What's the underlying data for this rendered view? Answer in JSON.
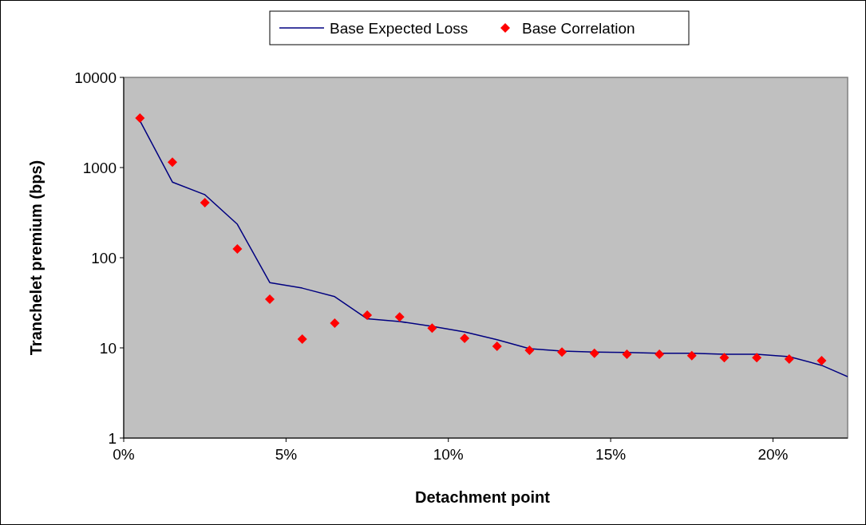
{
  "chart_data": {
    "type": "line",
    "xlabel": "Detachment point",
    "ylabel": "Tranchelet premium (bps)",
    "log": "y",
    "grid": false,
    "legend": "top",
    "xlim": [
      0,
      22.3
    ],
    "ylim": [
      1,
      10000
    ],
    "xticks": [
      {
        "value": 0,
        "label": "0%"
      },
      {
        "value": 5,
        "label": "5%"
      },
      {
        "value": 10,
        "label": "10%"
      },
      {
        "value": 15,
        "label": "15%"
      },
      {
        "value": 20,
        "label": "20%"
      }
    ],
    "yticks": [
      1,
      10,
      100,
      1000,
      10000
    ],
    "series": [
      {
        "name": "Base Expected Loss",
        "color": "#000080",
        "marker": "none",
        "line_style": "solid",
        "x": [
          0.5,
          1.5,
          2.5,
          3.5,
          4.5,
          5.5,
          6.5,
          7.5,
          8.5,
          9.5,
          10.5,
          11.5,
          12.5,
          13.5,
          14.5,
          15.5,
          16.5,
          17.5,
          18.5,
          19.5,
          20.5,
          21.5,
          22.3
        ],
        "values": [
          3300,
          690,
          500,
          235,
          53,
          46,
          37,
          21,
          19.6,
          17.3,
          15,
          12.3,
          9.8,
          9.2,
          9,
          8.9,
          8.7,
          8.7,
          8.5,
          8.5,
          8,
          6.4,
          4.8
        ]
      },
      {
        "name": "Base Correlation",
        "type": "scatter",
        "color": "#ff0000",
        "marker": "diamond",
        "x": [
          0.5,
          1.5,
          2.5,
          3.5,
          4.5,
          5.5,
          6.5,
          7.5,
          8.5,
          9.5,
          10.5,
          11.5,
          12.5,
          13.5,
          14.5,
          15.5,
          16.5,
          17.5,
          18.5,
          19.5,
          20.5,
          21.5
        ],
        "values": [
          3540,
          1150,
          408,
          125,
          34.7,
          12.5,
          18.8,
          23,
          22,
          16.6,
          12.8,
          10.4,
          9.4,
          9,
          8.7,
          8.5,
          8.5,
          8.2,
          7.8,
          7.8,
          7.5,
          7.2
        ]
      }
    ]
  }
}
